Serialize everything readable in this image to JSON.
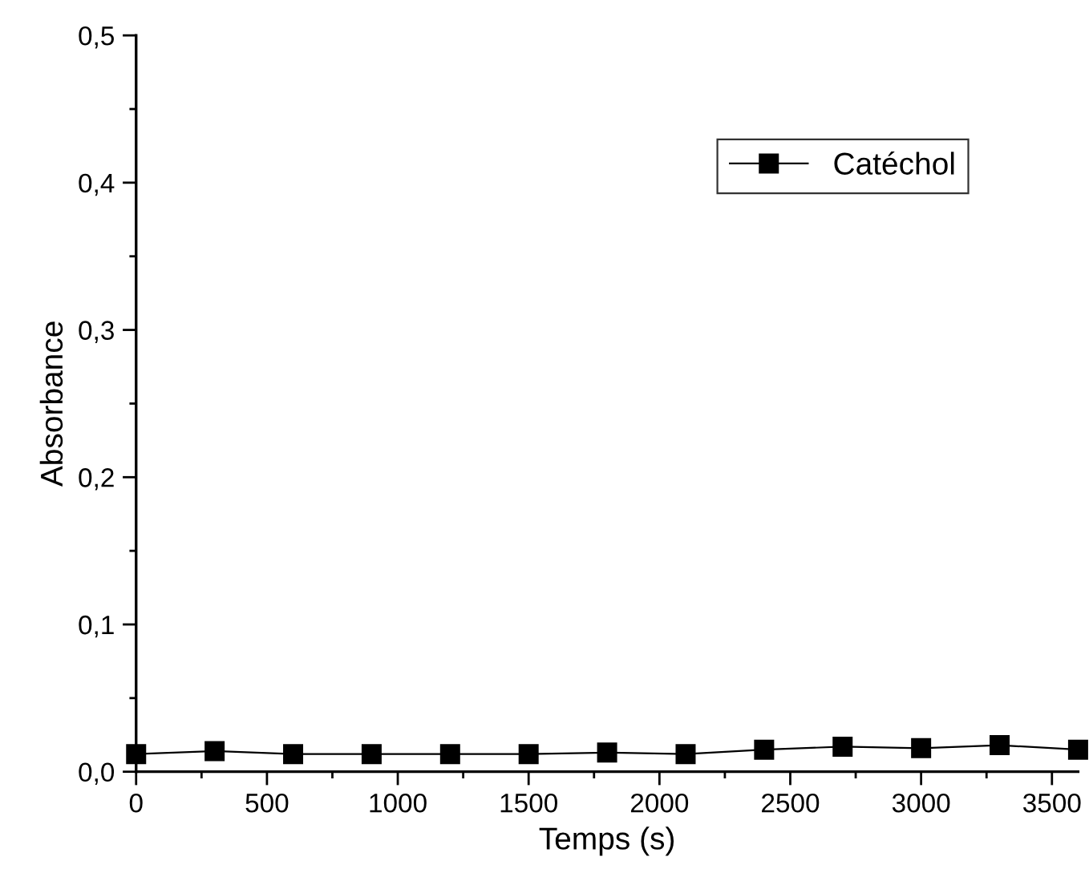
{
  "chart_data": {
    "type": "line",
    "xlabel": "Temps (s)",
    "ylabel": "Absorbance",
    "x": [
      0,
      300,
      600,
      900,
      1200,
      1500,
      1800,
      2100,
      2400,
      2700,
      3000,
      3300,
      3600
    ],
    "series": [
      {
        "name": "Catéchol",
        "color": "#000000",
        "values": [
          0.012,
          0.014,
          0.012,
          0.012,
          0.012,
          0.012,
          0.013,
          0.012,
          0.015,
          0.017,
          0.016,
          0.018,
          0.015
        ]
      }
    ],
    "xlim": [
      0,
      3600
    ],
    "ylim": [
      0,
      0.5
    ],
    "xticks": [
      0,
      500,
      1000,
      1500,
      2000,
      2500,
      3000,
      3500
    ],
    "yticks": [
      {
        "value": 0,
        "label": "0,0"
      },
      {
        "value": 0.1,
        "label": "0,1"
      },
      {
        "value": 0.2,
        "label": "0,2"
      },
      {
        "value": 0.3,
        "label": "0,3"
      },
      {
        "value": 0.4,
        "label": "0,4"
      },
      {
        "value": 0.5,
        "label": "0,5"
      }
    ],
    "marker": "square",
    "line_style": "solid",
    "legend": "top right",
    "grid": false
  }
}
